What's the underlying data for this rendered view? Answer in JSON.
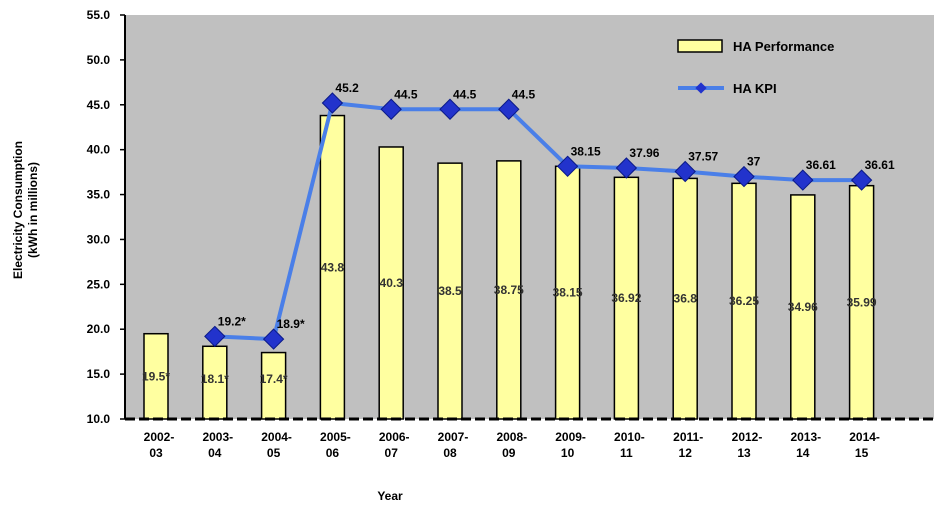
{
  "chart_data": {
    "type": "bar",
    "title": "",
    "xlabel": "Year",
    "ylabel_line1": "Electricity Consumption",
    "ylabel_line2": "(kWh in millions)",
    "ylim": [
      10,
      55
    ],
    "yticks": [
      "10.0",
      "15.0",
      "20.0",
      "25.0",
      "30.0",
      "35.0",
      "40.0",
      "45.0",
      "50.0",
      "55.0"
    ],
    "grid": false,
    "legend_position": "top-right",
    "categories": [
      [
        "2002-",
        "03"
      ],
      [
        "2003-",
        "04"
      ],
      [
        "2004-",
        "05"
      ],
      [
        "2005-",
        "06"
      ],
      [
        "2006-",
        "07"
      ],
      [
        "2007-",
        "08"
      ],
      [
        "2008-",
        "09"
      ],
      [
        "2009-",
        "10"
      ],
      [
        "2010-",
        "11"
      ],
      [
        "2011-",
        "12"
      ],
      [
        "2012-",
        "13"
      ],
      [
        "2013-",
        "14"
      ],
      [
        "2014-",
        "15"
      ]
    ],
    "series": [
      {
        "name": "HA Performance",
        "type": "bar",
        "color": "#ffffa0",
        "values": [
          19.5,
          18.1,
          17.4,
          43.8,
          40.3,
          38.5,
          38.75,
          38.15,
          36.92,
          36.8,
          36.25,
          34.96,
          35.99
        ],
        "labels": [
          "19.5*",
          "18.1*",
          "17.4*",
          "43.8",
          "40.3",
          "38.5",
          "38.75",
          "38.15",
          "36.92",
          "36.8",
          "36.25",
          "34.96",
          "35.99"
        ]
      },
      {
        "name": "HA KPI",
        "type": "line",
        "color": "#4a7fe8",
        "marker_color": "#2233cc",
        "values": [
          null,
          19.2,
          18.9,
          45.2,
          44.5,
          44.5,
          44.5,
          38.15,
          37.96,
          37.57,
          37,
          36.61,
          36.61
        ],
        "labels": [
          null,
          "19.2*",
          "18.9*",
          "45.2",
          "44.5",
          "44.5",
          "44.5",
          "38.15",
          "37.96",
          "37.57",
          "37",
          "36.61",
          "36.61"
        ]
      }
    ]
  }
}
